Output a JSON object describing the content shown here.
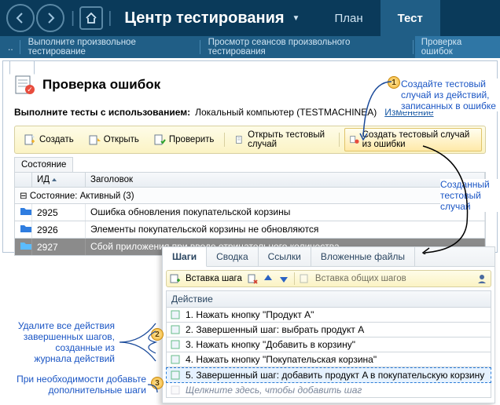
{
  "nav": {
    "title": "Центр тестирования",
    "tabs": [
      {
        "label": "План",
        "active": false
      },
      {
        "label": "Тест",
        "active": true
      }
    ]
  },
  "crumbs": {
    "items": [
      "Выполните произвольное тестирование",
      "Просмотр сеансов произвольного тестирования",
      "Проверка ошибок"
    ]
  },
  "panel": {
    "title": "Проверка ошибок",
    "env_label": "Выполните тесты с использованием:",
    "env_value": "Локальный компьютер (TESTMACHINEA)",
    "change_link": "Изменение"
  },
  "toolbar": {
    "create": "Создать",
    "open": "Открыть",
    "verify": "Проверить",
    "open_test_case": "Открыть тестовый случай",
    "create_test_case": "Создать тестовый случай из ошибки"
  },
  "grid": {
    "state_label": "Состояние",
    "columns": {
      "id": "ИД",
      "title": "Заголовок"
    },
    "group": "Состояние: Активный (3)",
    "rows": [
      {
        "id": "2925",
        "title": "Ошибка обновления покупательской корзины",
        "selected": false
      },
      {
        "id": "2926",
        "title": "Элементы покупательской корзины не обновляются",
        "selected": false
      },
      {
        "id": "2927",
        "title": "Сбой приложения при вводе отрицательного количества",
        "selected": true
      }
    ]
  },
  "steps": {
    "tabs": [
      "Шаги",
      "Сводка",
      "Ссылки",
      "Вложенные файлы"
    ],
    "active_tab": 0,
    "insert_step": "Вставка шага",
    "insert_shared": "Вставка общих шагов",
    "column": "Действие",
    "rows": [
      "1. Нажать кнопку \"Продукт A\"",
      "2. Завершенный шаг: выбрать продукт A",
      "3. Нажать кнопку \"Добавить в корзину\"",
      "4. Нажать кнопку \"Покупательская корзина\"",
      "5. Завершенный шаг: добавить продукт A в покупательскую корзину"
    ],
    "hint": "Щелкните здесь, чтобы добавить шаг"
  },
  "callouts": {
    "c1": "Создайте тестовый\nслучай из действий,\nзаписанных в ошибке",
    "c2": "Созданный\nтестовый\nслучай",
    "c3": "Удалите все действия\nзавершенных шагов,\nсозданные из\nжурнала действий",
    "c4": "При необходимости добавьте\nдополнительные шаги"
  },
  "colors": {
    "header_bg": "#0a3a5a",
    "subheader_bg": "#205e86",
    "toolbar_bg1": "#fefce8",
    "toolbar_bg2": "#fbf3c4",
    "highlight_border": "#e0c46a",
    "link": "#1a55c4",
    "sel_row": "#8b8b8b",
    "step_sel": "#e6f2ff"
  }
}
